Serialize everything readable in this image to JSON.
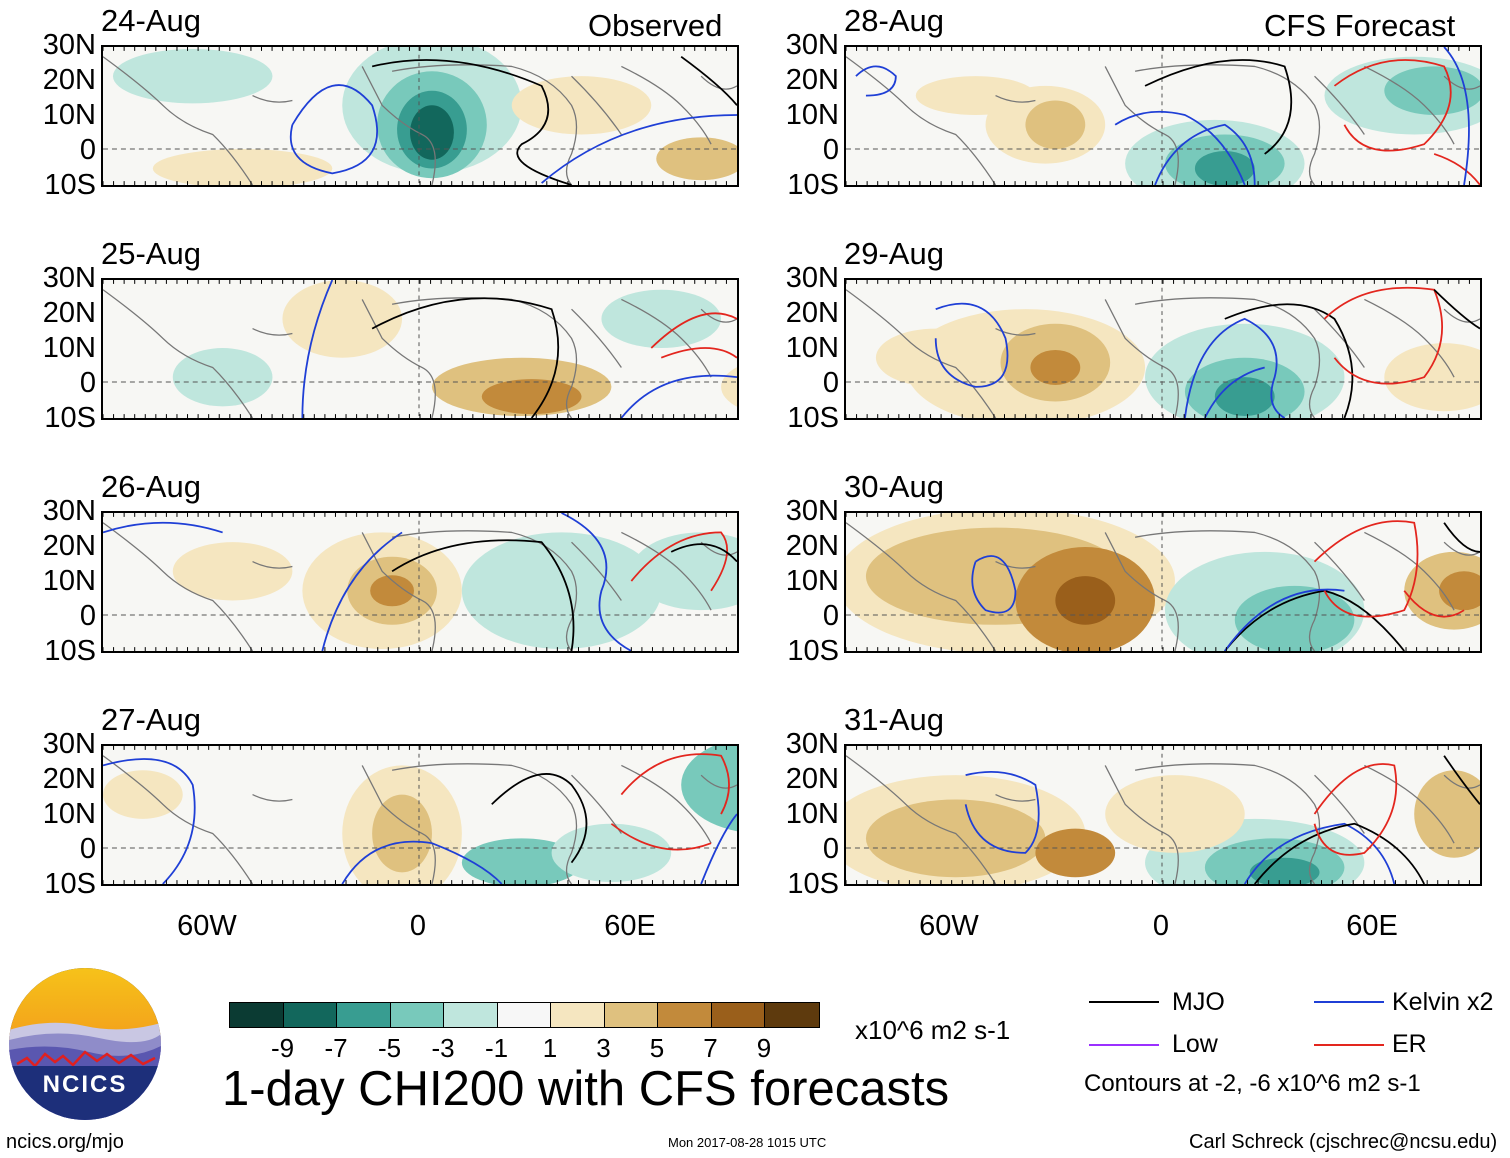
{
  "headers": {
    "left": "Observed",
    "right": "CFS Forecast"
  },
  "panels": [
    {
      "date": "24-Aug",
      "column": "left",
      "row": 0
    },
    {
      "date": "25-Aug",
      "column": "left",
      "row": 1
    },
    {
      "date": "26-Aug",
      "column": "left",
      "row": 2
    },
    {
      "date": "27-Aug",
      "column": "left",
      "row": 3
    },
    {
      "date": "28-Aug",
      "column": "right",
      "row": 0
    },
    {
      "date": "29-Aug",
      "column": "right",
      "row": 1
    },
    {
      "date": "30-Aug",
      "column": "right",
      "row": 2
    },
    {
      "date": "31-Aug",
      "column": "right",
      "row": 3
    }
  ],
  "lat_labels": [
    "30N",
    "20N",
    "10N",
    "0",
    "10S"
  ],
  "lon_labels": [
    "60W",
    "0",
    "60E"
  ],
  "colorbar": {
    "colors": [
      "#0b3b33",
      "#12675c",
      "#389d91",
      "#78c9bb",
      "#bfe6dd",
      "#f7f7f7",
      "#f5e6c0",
      "#dfc17f",
      "#c28a3b",
      "#9a5f1b",
      "#5e3a0d"
    ],
    "ticks": [
      "-9",
      "-7",
      "-5",
      "-3",
      "-1",
      "1",
      "3",
      "5",
      "7",
      "9"
    ],
    "units": "x10^6 m2 s-1"
  },
  "title": "1-day CHI200 with CFS forecasts",
  "legend": {
    "items": [
      {
        "label": "MJO",
        "color": "#000000"
      },
      {
        "label": "Kelvin x2",
        "color": "#1f3fd6"
      },
      {
        "label": "Low",
        "color": "#9b30ff"
      },
      {
        "label": "ER",
        "color": "#e3261e"
      }
    ],
    "note": "Contours at -2, -6 x10^6 m2 s-1"
  },
  "logo_text": "NCICS",
  "footer": {
    "left": "ncics.org/mjo",
    "center": "Mon 2017-08-28 1015 UTC",
    "right": "Carl Schreck (cjschrec@ncsu.edu)"
  }
}
